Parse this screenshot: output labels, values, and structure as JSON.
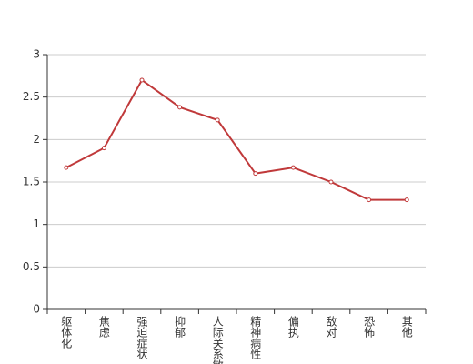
{
  "chart_data": {
    "type": "line",
    "categories": [
      "躯体化",
      "焦虑",
      "强迫症状",
      "抑郁",
      "人际关系敏感",
      "精神病性",
      "偏执",
      "敌对",
      "恐怖",
      "其他"
    ],
    "values": [
      1.67,
      1.9,
      2.7,
      2.38,
      2.23,
      1.6,
      1.67,
      1.5,
      1.29,
      1.29
    ],
    "color": "#c0393a",
    "ylim": [
      0,
      3
    ],
    "yticks": [
      0,
      0.5,
      1,
      1.5,
      2,
      2.5,
      3
    ],
    "grid": true
  }
}
